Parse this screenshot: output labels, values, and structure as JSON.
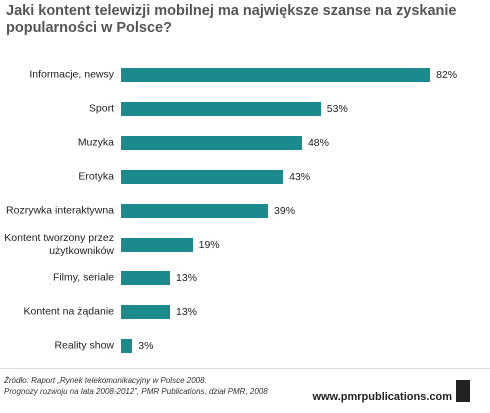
{
  "chart_data": {
    "type": "bar",
    "orientation": "horizontal",
    "title": "Jaki kontent telewizji mobilnej ma największe szanse na zyskanie popularności w Polsce?",
    "categories": [
      "Informacje, newsy",
      "Sport",
      "Muzyka",
      "Erotyka",
      "Rozrywka interaktywna",
      "Kontent tworzony przez użytkowników",
      "Filmy, seriale",
      "Kontent na żądanie",
      "Reality show"
    ],
    "values": [
      82,
      53,
      48,
      43,
      39,
      19,
      13,
      13,
      3
    ],
    "value_labels": [
      "82%",
      "53%",
      "48%",
      "43%",
      "39%",
      "19%",
      "13%",
      "13%",
      "3%"
    ],
    "color": "#1b8a8e",
    "source": [
      "Źródło: Raport „Rynek telekomunikacyjny w Polsce 2008.",
      "Prognozy rozwoju na lata 2008-2012”, PMR Publications, dział PMR, 2008"
    ],
    "website": "www.pmrpublications.com"
  }
}
